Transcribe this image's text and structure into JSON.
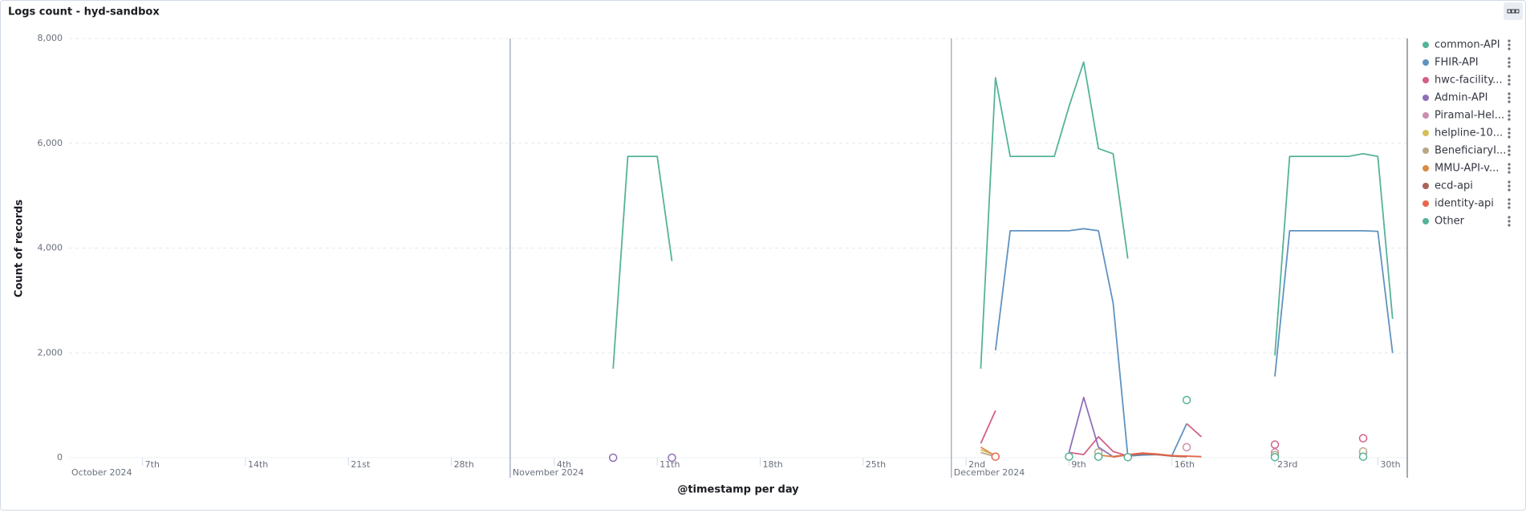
{
  "chart_data": {
    "type": "line",
    "title": "Logs count - hyd-sandbox",
    "y_label": "Count of records",
    "x_label": "@timestamp per day",
    "xlim": [
      "2024-10-02",
      "2025-01-01"
    ],
    "ylim": [
      0,
      8000
    ],
    "yticks": [
      0,
      {
        "value": 2000,
        "label": "2,000"
      },
      {
        "value": 4000,
        "label": "4,000"
      },
      {
        "value": 6000,
        "label": "6,000"
      },
      {
        "value": 8000,
        "label": "8,000"
      }
    ],
    "xticks": [
      {
        "value": "2024-10-07",
        "label": "7th"
      },
      {
        "value": "2024-10-14",
        "label": "14th"
      },
      {
        "value": "2024-10-21",
        "label": "21st"
      },
      {
        "value": "2024-10-28",
        "label": "28th"
      },
      {
        "value": "2024-11-04",
        "label": "4th"
      },
      {
        "value": "2024-11-11",
        "label": "11th"
      },
      {
        "value": "2024-11-18",
        "label": "18th"
      },
      {
        "value": "2024-11-25",
        "label": "25th"
      },
      {
        "value": "2024-12-02",
        "label": "2nd"
      },
      {
        "value": "2024-12-09",
        "label": "9th"
      },
      {
        "value": "2024-12-16",
        "label": "16th"
      },
      {
        "value": "2024-12-23",
        "label": "23rd"
      },
      {
        "value": "2024-12-30",
        "label": "30th"
      }
    ],
    "x_months": [
      {
        "value": "2024-10-01",
        "label": "October 2024"
      },
      {
        "value": "2024-11-01",
        "label": "November 2024"
      },
      {
        "value": "2024-12-01",
        "label": "December 2024"
      }
    ],
    "grid": true,
    "legend": "right",
    "series": [
      {
        "name": "common-API",
        "color": "#54b399",
        "x": [
          "2024-11-08",
          "2024-11-09",
          "2024-11-10",
          "2024-11-11",
          "2024-11-12",
          "2024-11-13",
          "2024-12-03",
          "2024-12-04",
          "2024-12-05",
          "2024-12-06",
          "2024-12-07",
          "2024-12-08",
          "2024-12-09",
          "2024-12-10",
          "2024-12-11",
          "2024-12-12",
          "2024-12-13",
          "2024-12-14",
          "2024-12-23",
          "2024-12-24",
          "2024-12-25",
          "2024-12-26",
          "2024-12-27",
          "2024-12-28",
          "2024-12-29",
          "2024-12-30",
          "2024-12-31"
        ],
        "values": [
          1700,
          5750,
          5750,
          5750,
          3750,
          null,
          1700,
          7250,
          5750,
          5750,
          5750,
          5750,
          6700,
          7550,
          5900,
          5800,
          3800,
          null,
          1950,
          5750,
          5750,
          5750,
          5750,
          5750,
          5800,
          5750,
          2650
        ]
      },
      {
        "name": "FHIR-API",
        "color": "#6092c0",
        "x": [
          "2024-12-04",
          "2024-12-05",
          "2024-12-06",
          "2024-12-07",
          "2024-12-08",
          "2024-12-09",
          "2024-12-10",
          "2024-12-11",
          "2024-12-12",
          "2024-12-13",
          "2024-12-14",
          "2024-12-15",
          "2024-12-16",
          "2024-12-17",
          "2024-12-18",
          "2024-12-23",
          "2024-12-24",
          "2024-12-25",
          "2024-12-26",
          "2024-12-27",
          "2024-12-28",
          "2024-12-29",
          "2024-12-30",
          "2024-12-31"
        ],
        "values": [
          2050,
          4330,
          4330,
          4330,
          4330,
          4330,
          4370,
          4330,
          2950,
          30,
          50,
          60,
          40,
          650,
          null,
          1550,
          4330,
          4330,
          4330,
          4330,
          4330,
          4330,
          4320,
          2000
        ]
      },
      {
        "name": "hwc-facility...",
        "color": "#d36086",
        "x": [
          "2024-12-03",
          "2024-12-04",
          "2024-12-05",
          "2024-12-09",
          "2024-12-10",
          "2024-12-11",
          "2024-12-12",
          "2024-12-13",
          "2024-12-14",
          "2024-12-17",
          "2024-12-18",
          "2024-12-19",
          "2024-12-23",
          "2024-12-24",
          "2024-12-29"
        ],
        "values": [
          270,
          900,
          null,
          100,
          60,
          400,
          120,
          30,
          null,
          650,
          400,
          null,
          250,
          null,
          370
        ]
      },
      {
        "name": "Admin-API",
        "color": "#9170b8",
        "x": [
          "2024-11-08",
          "2024-11-09",
          "2024-11-12",
          "2024-11-13",
          "2024-12-09",
          "2024-12-10",
          "2024-12-11",
          "2024-12-12"
        ],
        "values": [
          0,
          null,
          0,
          null,
          100,
          1150,
          200,
          20
        ]
      },
      {
        "name": "Piramal-Hel...",
        "color": "#ca8eae",
        "x": [
          "2024-12-17",
          "2024-12-18",
          "2024-12-23",
          "2024-12-24",
          "2024-12-29"
        ],
        "values": [
          200,
          null,
          100,
          null,
          100
        ]
      },
      {
        "name": "helpline-10...",
        "color": "#d6bf57",
        "x": [
          "2024-12-03",
          "2024-12-04"
        ],
        "values": [
          150,
          50
        ]
      },
      {
        "name": "BeneficiaryI...",
        "color": "#b9a888",
        "x": [
          "2024-12-03",
          "2024-12-04",
          "2024-12-05",
          "2024-12-11",
          "2024-12-12",
          "2024-12-23",
          "2024-12-24",
          "2024-12-29"
        ],
        "values": [
          100,
          20,
          null,
          100,
          null,
          50,
          null,
          120
        ]
      },
      {
        "name": "MMU-API-v...",
        "color": "#da8b45",
        "x": [
          "2024-12-03",
          "2024-12-04",
          "2024-12-05",
          "2024-12-11",
          "2024-12-12",
          "2024-12-13",
          "2024-12-14",
          "2024-12-15",
          "2024-12-16",
          "2024-12-17"
        ],
        "values": [
          200,
          30,
          null,
          50,
          20,
          60,
          80,
          60,
          30,
          20
        ]
      },
      {
        "name": "ecd-api",
        "color": "#aa6556",
        "x": [
          "2024-12-12",
          "2024-12-13",
          "2024-12-14",
          "2024-12-15",
          "2024-12-16",
          "2024-12-17"
        ],
        "values": [
          20,
          50,
          70,
          60,
          30,
          20
        ]
      },
      {
        "name": "identity-api",
        "color": "#e7664c",
        "x": [
          "2024-12-04",
          "2024-12-05",
          "2024-12-12",
          "2024-12-13",
          "2024-12-14",
          "2024-12-15",
          "2024-12-16",
          "2024-12-17",
          "2024-12-18"
        ],
        "values": [
          20,
          null,
          10,
          60,
          90,
          70,
          40,
          30,
          20
        ]
      },
      {
        "name": "Other",
        "color": "#54b399",
        "x": [
          "2024-12-09",
          "2024-12-10",
          "2024-12-11",
          "2024-12-12",
          "2024-12-13",
          "2024-12-14",
          "2024-12-17",
          "2024-12-18",
          "2024-12-23",
          "2024-12-24",
          "2024-12-29"
        ],
        "values": [
          20,
          null,
          20,
          null,
          10,
          null,
          1100,
          null,
          10,
          null,
          20
        ]
      }
    ]
  }
}
